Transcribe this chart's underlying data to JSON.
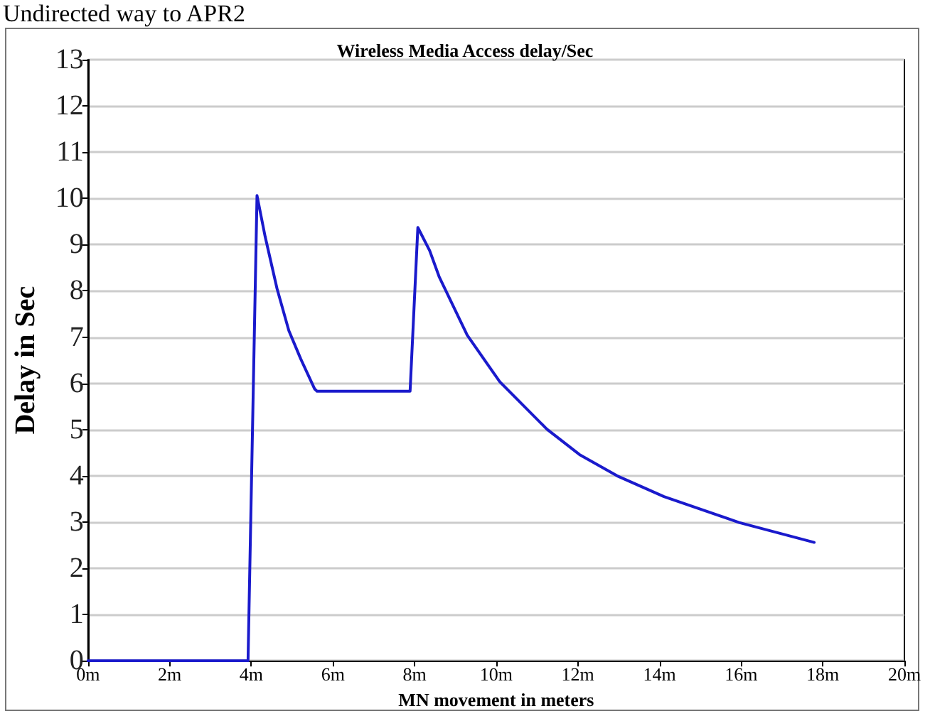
{
  "chart_data": {
    "type": "line",
    "title": "Wireless Media Access delay/Sec",
    "xlabel": "MN movement in meters",
    "ylabel": "Delay in Sec",
    "annotations": [
      "Undirected way to APR2"
    ],
    "x": [
      0,
      3.92,
      4.14,
      4.34,
      4.63,
      4.92,
      5.21,
      5.55,
      5.61,
      7.89,
      8.08,
      8.37,
      8.6,
      9.29,
      10.09,
      11.24,
      12.04,
      12.96,
      14.11,
      15.95,
      17.79
    ],
    "series": [
      {
        "color": "#1a1acc",
        "values": [
          0,
          0,
          10.06,
          9.17,
          8.05,
          7.14,
          6.53,
          5.88,
          5.83,
          5.83,
          9.37,
          8.87,
          8.31,
          7.04,
          6.03,
          5.01,
          4.46,
          4.0,
          3.55,
          2.99,
          2.56
        ]
      }
    ],
    "xlim": [
      0,
      20
    ],
    "xticks": [
      {
        "value": 0,
        "label": "0m"
      },
      {
        "value": 2,
        "label": "2m"
      },
      {
        "value": 4,
        "label": "4m"
      },
      {
        "value": 6,
        "label": "6m"
      },
      {
        "value": 8,
        "label": "8m"
      },
      {
        "value": 10,
        "label": "10m"
      },
      {
        "value": 12,
        "label": "12m"
      },
      {
        "value": 14,
        "label": "14m"
      },
      {
        "value": 16,
        "label": "16m"
      },
      {
        "value": 18,
        "label": "18m"
      },
      {
        "value": 20,
        "label": "20m"
      }
    ],
    "ylim": [
      0,
      13
    ],
    "yticks": [
      0,
      1,
      2,
      3,
      4,
      5,
      6,
      7,
      8,
      9,
      10,
      11,
      12,
      13
    ],
    "grid": "y",
    "marker": "none",
    "line_style": "solid"
  }
}
